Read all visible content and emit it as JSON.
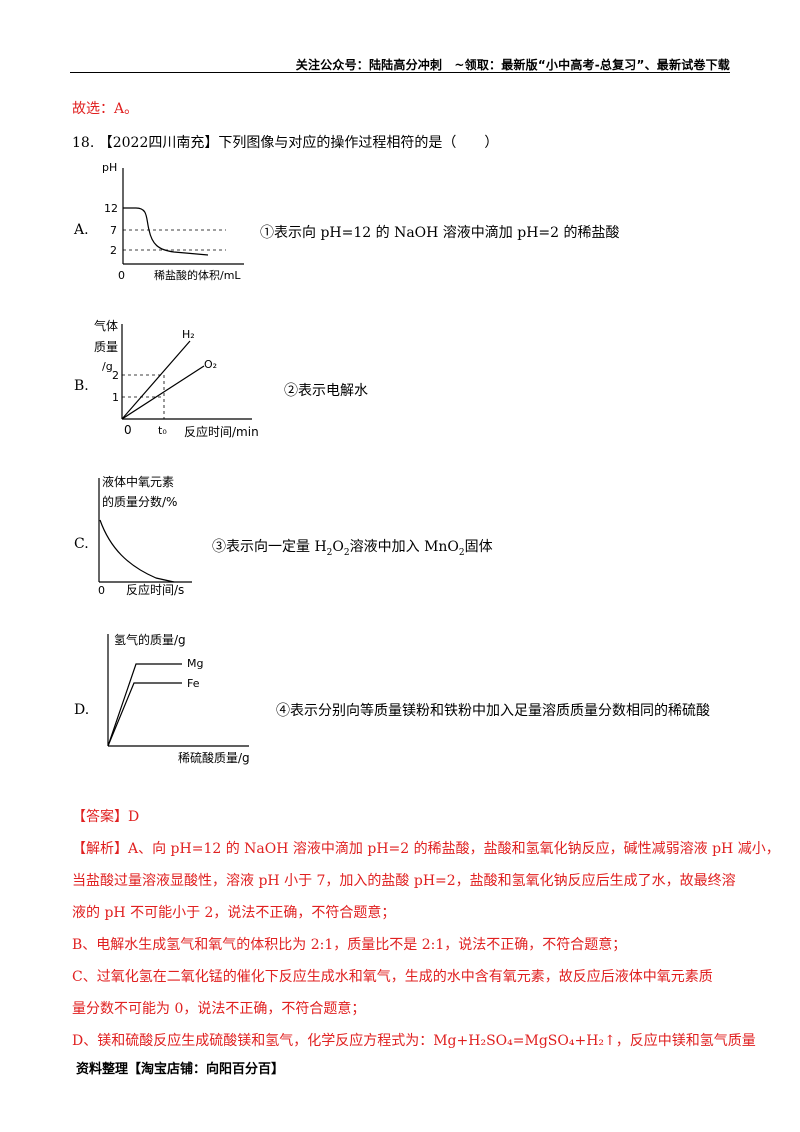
{
  "header": {
    "text": "关注公众号：陆陆高分冲刺　~领取：最新版“小中高考-总复习”、最新试卷下载"
  },
  "prev_answer": "故选：A。",
  "question": {
    "number": "18.",
    "source": "【2022四川南充】",
    "stem": "下列图像与对应的操作过程相符的是（　　）"
  },
  "options": {
    "A": {
      "label": "A.",
      "caption": "①表示向 pH=12 的 NaOH 溶液中滴加 pH=2 的稀盐酸",
      "graph": {
        "ylabel": "pH",
        "xlabel": "稀盐酸的体积/mL",
        "origin": "0",
        "ticks": [
          "12",
          "7",
          "2"
        ]
      }
    },
    "B": {
      "label": "B.",
      "caption": "②表示电解水",
      "graph": {
        "ylabel_line1": "气体",
        "ylabel_line2": "质量",
        "ylabel_line3": "/g",
        "xlabel": "反应时间/min",
        "origin": "0",
        "ticks": [
          "2",
          "1"
        ],
        "xtick": "t₀",
        "series": [
          "H₂",
          "O₂"
        ]
      }
    },
    "C": {
      "label": "C.",
      "caption_pre": "③表示向一定量 H",
      "caption_mid1": "O",
      "caption_mid2": "溶液中加入 MnO",
      "caption_post": "固体",
      "sub2": "2",
      "graph": {
        "ylabel_line1": "液体中氧元素",
        "ylabel_line2": "的质量分数/%",
        "xlabel": "反应时间/s",
        "origin": "0"
      }
    },
    "D": {
      "label": "D.",
      "caption": "④表示分别向等质量镁粉和铁粉中加入足量溶质质量分数相同的稀硫酸",
      "graph": {
        "ylabel": "氢气的质量/g",
        "xlabel": "稀硫酸质量/g",
        "series": [
          "Mg",
          "Fe"
        ]
      }
    }
  },
  "answer": {
    "label": "【答案】",
    "value": "D"
  },
  "analysis": {
    "label": "【解析】",
    "lines": [
      "A、向 pH=12 的 NaOH 溶液中滴加 pH=2 的稀盐酸，盐酸和氢氧化钠反应，碱性减弱溶液 pH 减小，",
      "当盐酸过量溶液显酸性，溶液 pH 小于 7，加入的盐酸 pH=2，盐酸和氢氧化钠反应后生成了水，故最终溶",
      "液的 pH 不可能小于 2，说法不正确，不符合题意；",
      "B、电解水生成氢气和氧气的体积比为 2:1，质量比不是 2:1，说法不正确，不符合题意；",
      "C、过氧化氢在二氧化锰的催化下反应生成水和氧气，生成的水中含有氧元素，故反应后液体中氧元素质",
      "量分数不可能为 0，说法不正确，不符合题意；",
      "D、镁和硫酸反应生成硫酸镁和氢气，化学反应方程式为：Mg+H₂SO₄=MgSO₄+H₂↑，反应中镁和氢气质量"
    ]
  },
  "footer": {
    "text": "资料整理【淘宝店铺：向阳百分百】"
  }
}
